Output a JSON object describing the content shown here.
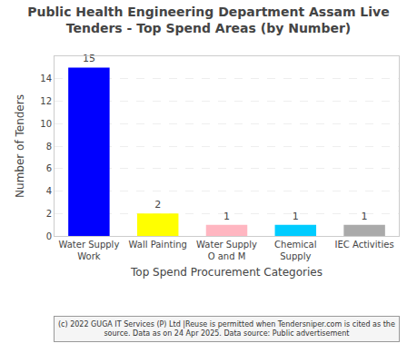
{
  "chart_data": {
    "type": "bar",
    "title": "Public Health Engineering Department Assam Live\nTenders - Top Spend Areas (by Number)",
    "categories": [
      "Water Supply\nWork",
      "Wall Painting",
      "Water Supply\nO and M",
      "Chemical\nSupply",
      "IEC Activities"
    ],
    "values": [
      15,
      2,
      1,
      1,
      1
    ],
    "colors": [
      "#0000FF",
      "#FFFF00",
      "#FFB6C1",
      "#00CCFF",
      "#AAAAAA"
    ],
    "ylabel": "Number of Tenders",
    "xlabel": "Top Spend Procurement Categories",
    "ylim": [
      0,
      16
    ],
    "yticks": [
      0,
      2,
      4,
      6,
      8,
      10,
      12,
      14
    ],
    "grid": true,
    "data_labels": true,
    "annotations": [
      "(c) 2022 GUGA IT Services (P) Ltd |Reuse is permitted when Tendersniper.com is cited as the\nsource. Data as on 24 Apr 2025. Data source: Public advertisement"
    ]
  }
}
